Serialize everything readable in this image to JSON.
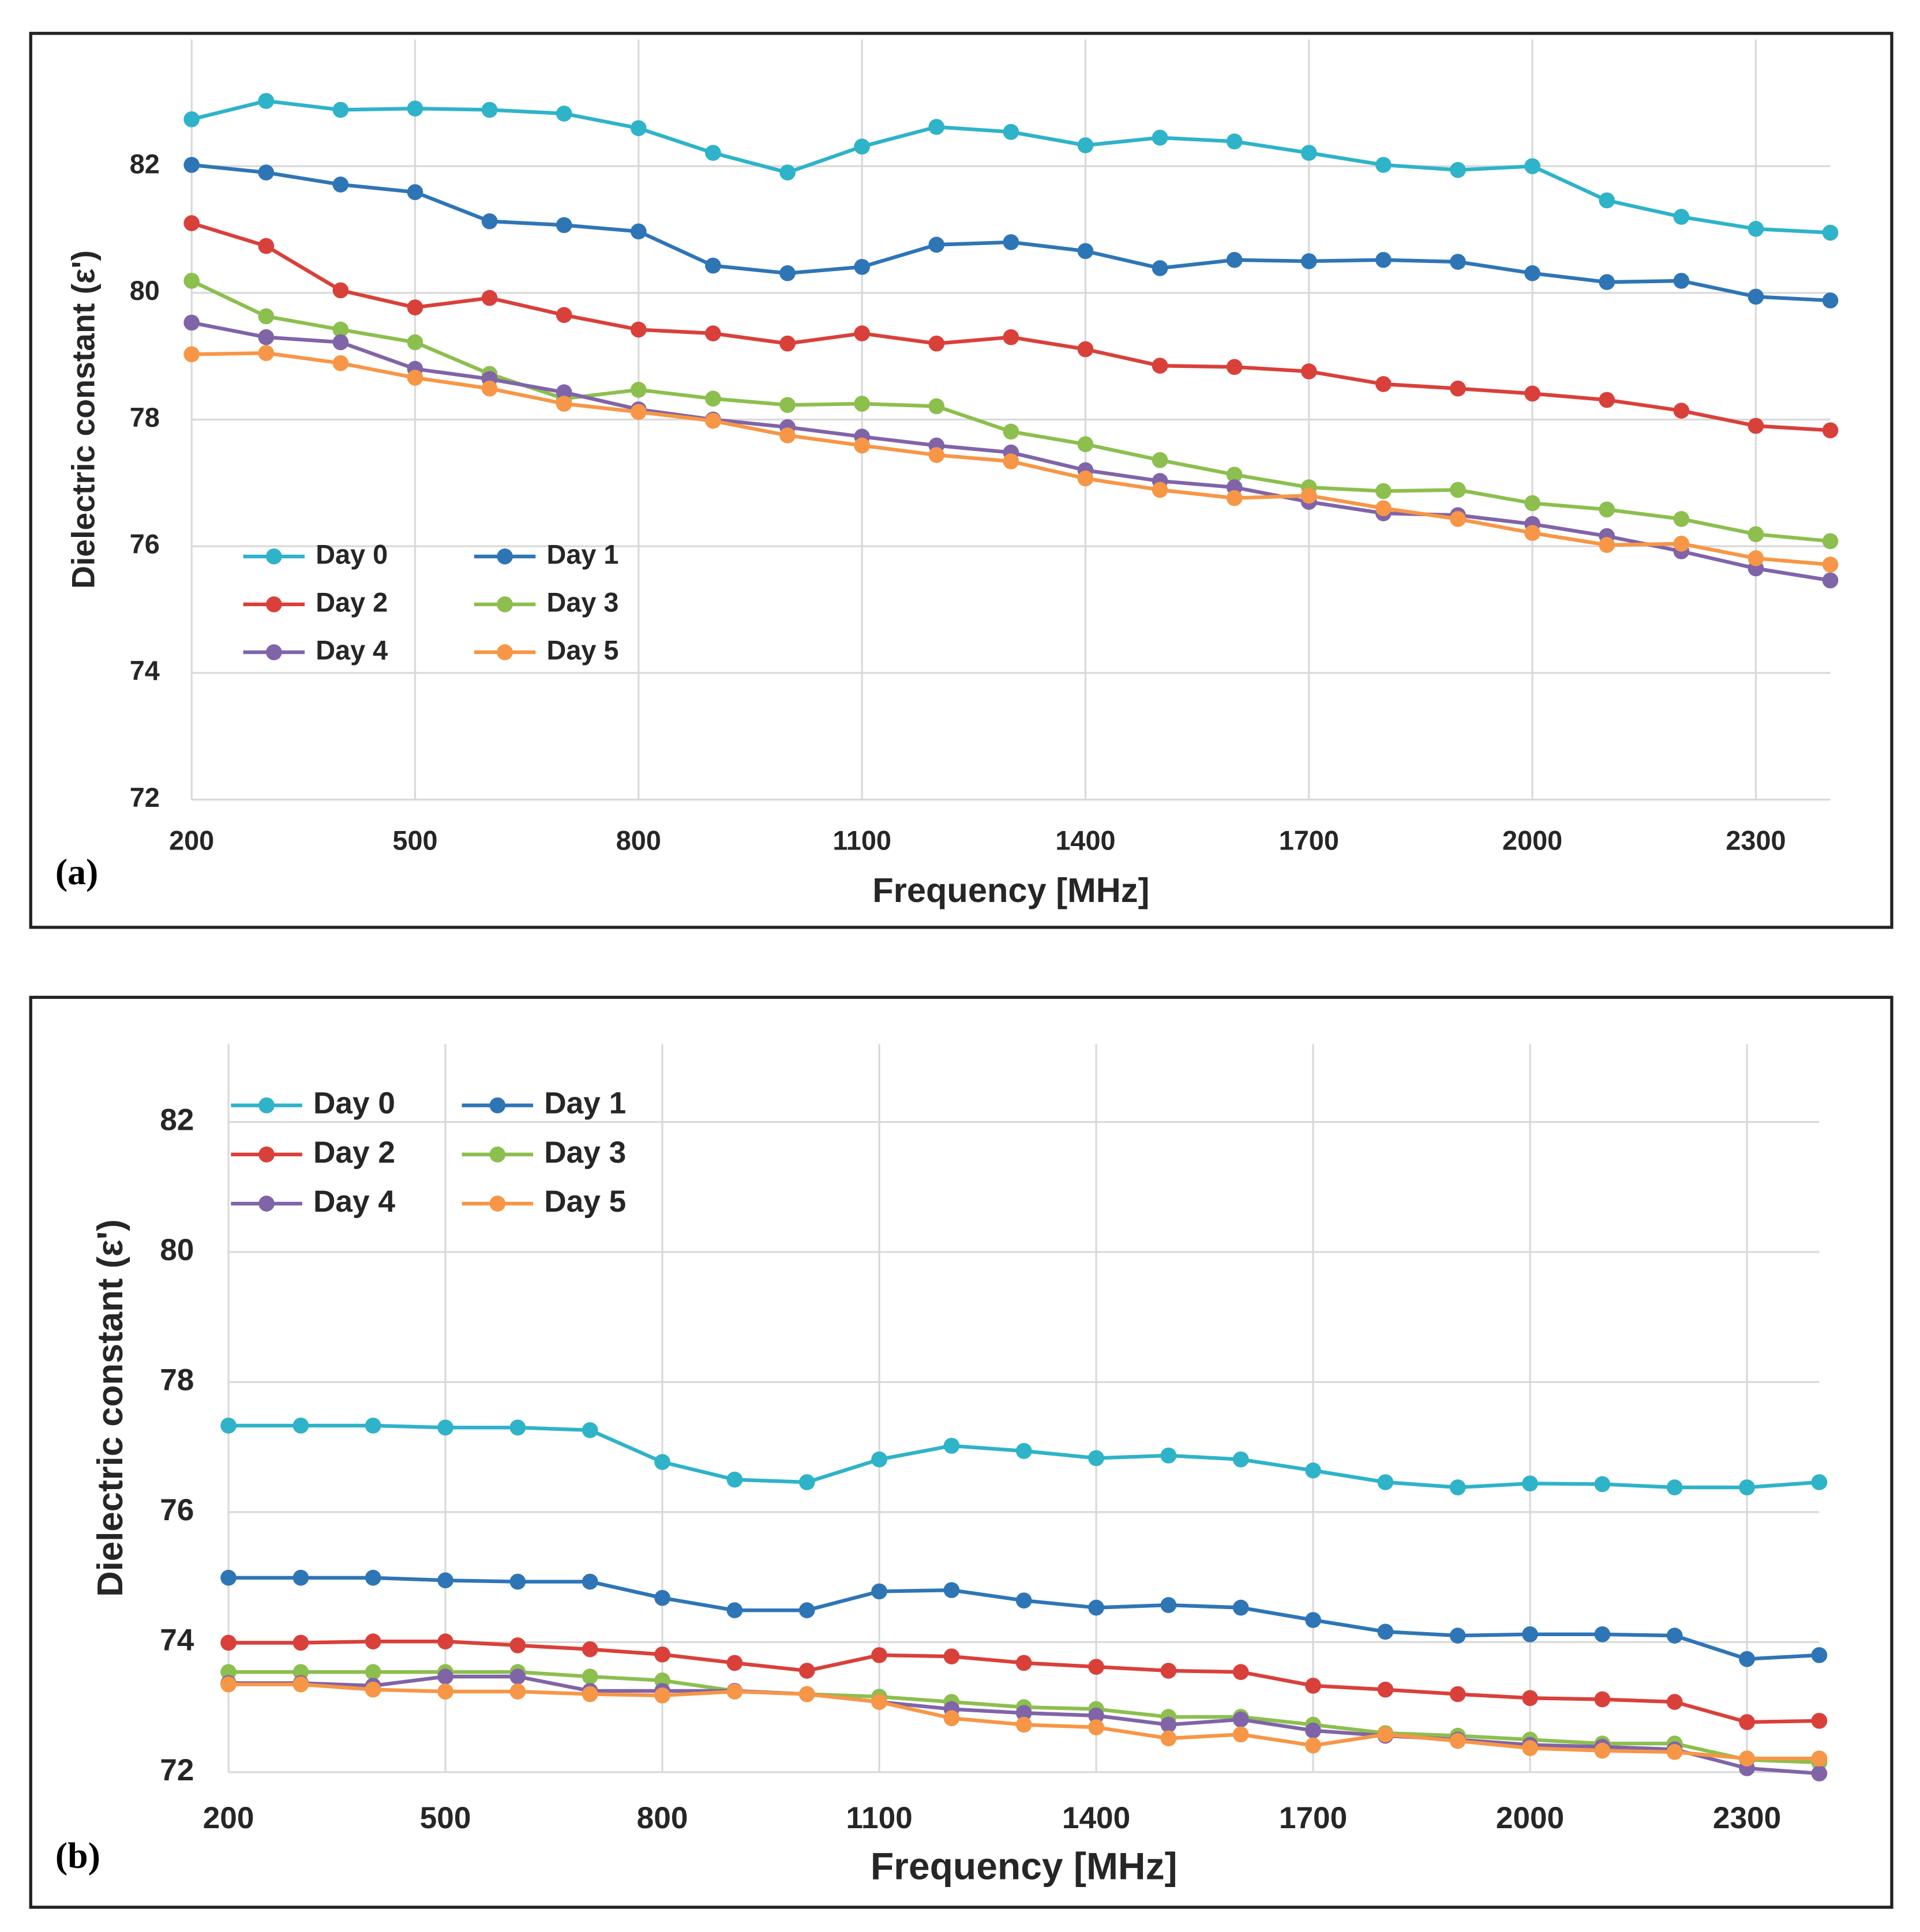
{
  "chart_data": [
    {
      "type": "line",
      "label": "(a)",
      "xlabel": "Frequency [MHz]",
      "ylabel": "Dielectric constant (ε')",
      "x": [
        200,
        300,
        400,
        500,
        600,
        700,
        800,
        900,
        1000,
        1100,
        1200,
        1300,
        1400,
        1500,
        1600,
        1700,
        1800,
        1900,
        2000,
        2100,
        2200,
        2300,
        2400
      ],
      "xlim": [
        200,
        2400
      ],
      "xticks": [
        200,
        500,
        800,
        1100,
        1400,
        1700,
        2000,
        2300
      ],
      "ylim": [
        72,
        84
      ],
      "yticks": [
        72,
        74,
        76,
        78,
        80,
        82
      ],
      "grid": true,
      "legend": "lower left",
      "series": [
        {
          "name": "Day 0",
          "color": "#2eb3c9",
          "values": [
            82.74,
            83.03,
            82.89,
            82.91,
            82.89,
            82.83,
            82.6,
            82.21,
            81.9,
            82.31,
            82.62,
            82.54,
            82.33,
            82.45,
            82.39,
            82.21,
            82.02,
            81.94,
            82.0,
            81.46,
            81.2,
            81.01,
            80.95
          ]
        },
        {
          "name": "Day 1",
          "color": "#2e75b6",
          "values": [
            82.02,
            81.9,
            81.71,
            81.59,
            81.13,
            81.07,
            80.97,
            80.43,
            80.31,
            80.41,
            80.76,
            80.8,
            80.66,
            80.39,
            80.52,
            80.5,
            80.52,
            80.49,
            80.31,
            80.17,
            80.19,
            79.94,
            79.88
          ]
        },
        {
          "name": "Day 2",
          "color": "#d9403a",
          "values": [
            81.1,
            80.74,
            80.04,
            79.77,
            79.92,
            79.65,
            79.42,
            79.36,
            79.2,
            79.36,
            79.2,
            79.3,
            79.11,
            78.85,
            78.83,
            78.76,
            78.56,
            78.49,
            78.41,
            78.31,
            78.14,
            77.9,
            77.83
          ]
        },
        {
          "name": "Day 3",
          "color": "#8cbf4e",
          "values": [
            80.19,
            79.63,
            79.42,
            79.22,
            78.72,
            78.33,
            78.47,
            78.33,
            78.23,
            78.25,
            78.21,
            77.81,
            77.61,
            77.36,
            77.13,
            76.93,
            76.87,
            76.89,
            76.68,
            76.58,
            76.43,
            76.19,
            76.08
          ]
        },
        {
          "name": "Day 4",
          "color": "#8064a8",
          "values": [
            79.53,
            79.3,
            79.22,
            78.8,
            78.64,
            78.43,
            78.16,
            78.0,
            77.88,
            77.73,
            77.59,
            77.48,
            77.2,
            77.03,
            76.93,
            76.7,
            76.52,
            76.49,
            76.35,
            76.16,
            75.92,
            75.65,
            75.46
          ]
        },
        {
          "name": "Day 5",
          "color": "#f79646",
          "values": [
            79.03,
            79.05,
            78.89,
            78.66,
            78.49,
            78.25,
            78.12,
            77.98,
            77.75,
            77.59,
            77.44,
            77.34,
            77.07,
            76.89,
            76.76,
            76.8,
            76.6,
            76.43,
            76.21,
            76.02,
            76.04,
            75.81,
            75.71
          ]
        }
      ]
    },
    {
      "type": "line",
      "label": "(b)",
      "xlabel": "Frequency [MHz]",
      "ylabel": "Dielectric constant (ε')",
      "x": [
        200,
        300,
        400,
        500,
        600,
        700,
        800,
        900,
        1000,
        1100,
        1200,
        1300,
        1400,
        1500,
        1600,
        1700,
        1800,
        1900,
        2000,
        2100,
        2200,
        2300,
        2400
      ],
      "xlim": [
        200,
        2400
      ],
      "xticks": [
        200,
        500,
        800,
        1100,
        1400,
        1700,
        2000,
        2300
      ],
      "ylim": [
        72,
        83.2
      ],
      "yticks": [
        72,
        74,
        76,
        78,
        80,
        82
      ],
      "grid": true,
      "legend": "upper left",
      "series": [
        {
          "name": "Day 0",
          "color": "#2eb3c9",
          "values": [
            77.33,
            77.33,
            77.33,
            77.3,
            77.3,
            77.26,
            76.77,
            76.5,
            76.46,
            76.81,
            77.02,
            76.94,
            76.83,
            76.87,
            76.81,
            76.64,
            76.46,
            76.38,
            76.44,
            76.43,
            76.38,
            76.38,
            76.46
          ]
        },
        {
          "name": "Day 1",
          "color": "#2e75b6",
          "values": [
            74.99,
            74.99,
            74.99,
            74.95,
            74.93,
            74.93,
            74.68,
            74.49,
            74.49,
            74.78,
            74.8,
            74.64,
            74.53,
            74.57,
            74.53,
            74.34,
            74.16,
            74.1,
            74.12,
            74.12,
            74.1,
            73.74,
            73.8
          ]
        },
        {
          "name": "Day 2",
          "color": "#d9403a",
          "values": [
            73.99,
            73.99,
            74.01,
            74.01,
            73.95,
            73.89,
            73.81,
            73.68,
            73.56,
            73.8,
            73.78,
            73.68,
            73.62,
            73.56,
            73.54,
            73.33,
            73.27,
            73.2,
            73.14,
            73.12,
            73.08,
            72.77,
            72.79
          ]
        },
        {
          "name": "Day 3",
          "color": "#8cbf4e",
          "values": [
            73.54,
            73.54,
            73.54,
            73.54,
            73.54,
            73.47,
            73.41,
            73.25,
            73.2,
            73.16,
            73.08,
            73.0,
            72.97,
            72.85,
            72.85,
            72.73,
            72.6,
            72.56,
            72.5,
            72.44,
            72.44,
            72.19,
            72.15
          ]
        },
        {
          "name": "Day 4",
          "color": "#8064a8",
          "values": [
            73.37,
            73.37,
            73.33,
            73.47,
            73.47,
            73.25,
            73.25,
            73.25,
            73.2,
            73.08,
            72.97,
            72.91,
            72.87,
            72.73,
            72.81,
            72.64,
            72.56,
            72.5,
            72.42,
            72.39,
            72.35,
            72.06,
            71.98
          ]
        },
        {
          "name": "Day 5",
          "color": "#f79646",
          "values": [
            73.35,
            73.35,
            73.27,
            73.24,
            73.24,
            73.2,
            73.18,
            73.24,
            73.2,
            73.08,
            72.83,
            72.73,
            72.69,
            72.52,
            72.58,
            72.41,
            72.58,
            72.48,
            72.37,
            72.33,
            72.31,
            72.21,
            72.21
          ]
        }
      ]
    }
  ]
}
